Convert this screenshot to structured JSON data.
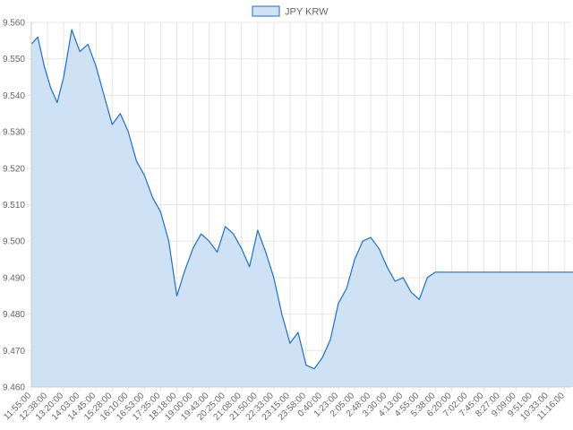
{
  "chart_data": {
    "type": "area",
    "title": "",
    "xlabel": "",
    "ylabel": "",
    "legend": {
      "position": "top",
      "entries": [
        "JPY KRW"
      ]
    },
    "grid": true,
    "ylim": [
      9.46,
      9.56
    ],
    "y_ticks": [
      "9.560",
      "9.550",
      "9.540",
      "9.530",
      "9.520",
      "9.510",
      "9.500",
      "9.490",
      "9.480",
      "9.470",
      "9.460"
    ],
    "x_ticks": [
      "11:55:00",
      "12:38:00",
      "13:20:00",
      "14:03:00",
      "14:45:00",
      "15:28:00",
      "16:10:00",
      "16:53:00",
      "17:35:00",
      "18:18:00",
      "19:00:00",
      "19:43:00",
      "20:25:00",
      "21:08:00",
      "21:50:00",
      "22:33:00",
      "23:15:00",
      "23:58:00",
      "0:40:00",
      "1:23:00",
      "2:05:00",
      "2:48:00",
      "3:30:00",
      "4:13:00",
      "4:55:00",
      "5:38:00",
      "6:20:00",
      "7:02:00",
      "7:45:00",
      "8:27:00",
      "9:09:00",
      "9:51:00",
      "10:33:00",
      "11:16:00"
    ],
    "series": [
      {
        "name": "JPY KRW",
        "line_color": "#1f6fc5",
        "fill_color": "#cfe1f5",
        "x": [
          0,
          0.4,
          0.8,
          1.2,
          1.6,
          2.0,
          2.5,
          3.0,
          3.5,
          4.0,
          4.5,
          5.0,
          5.5,
          6.0,
          6.5,
          7.0,
          7.5,
          8.0,
          8.5,
          9.0,
          9.5,
          10.0,
          10.5,
          11.0,
          11.5,
          12.0,
          12.5,
          13.0,
          13.5,
          14.0,
          14.5,
          15.0,
          15.5,
          16.0,
          16.5,
          17.0,
          17.5,
          18.0,
          18.5,
          19.0,
          19.5,
          20.0,
          20.5,
          21.0,
          21.5,
          22.0,
          22.5,
          23.0,
          23.5,
          24.0,
          24.5,
          25.0,
          25.1,
          25.2,
          26.0,
          27.0,
          28.0,
          29.0,
          30.0,
          31.0,
          32.0,
          33.0,
          33.9
        ],
        "y": [
          9.554,
          9.556,
          9.548,
          9.542,
          9.538,
          9.545,
          9.558,
          9.552,
          9.554,
          9.548,
          9.54,
          9.532,
          9.535,
          9.53,
          9.522,
          9.518,
          9.512,
          9.508,
          9.5,
          9.485,
          9.492,
          9.498,
          9.502,
          9.5,
          9.497,
          9.504,
          9.502,
          9.498,
          9.493,
          9.503,
          9.497,
          9.49,
          9.48,
          9.472,
          9.475,
          9.466,
          9.465,
          9.468,
          9.473,
          9.483,
          9.487,
          9.495,
          9.5,
          9.501,
          9.498,
          9.493,
          9.489,
          9.49,
          9.486,
          9.484,
          9.49,
          9.4915,
          9.4915,
          9.4915,
          9.4915,
          9.4915,
          9.4915,
          9.4915,
          9.4915,
          9.4915,
          9.4915,
          9.4915,
          9.4915
        ]
      }
    ]
  }
}
